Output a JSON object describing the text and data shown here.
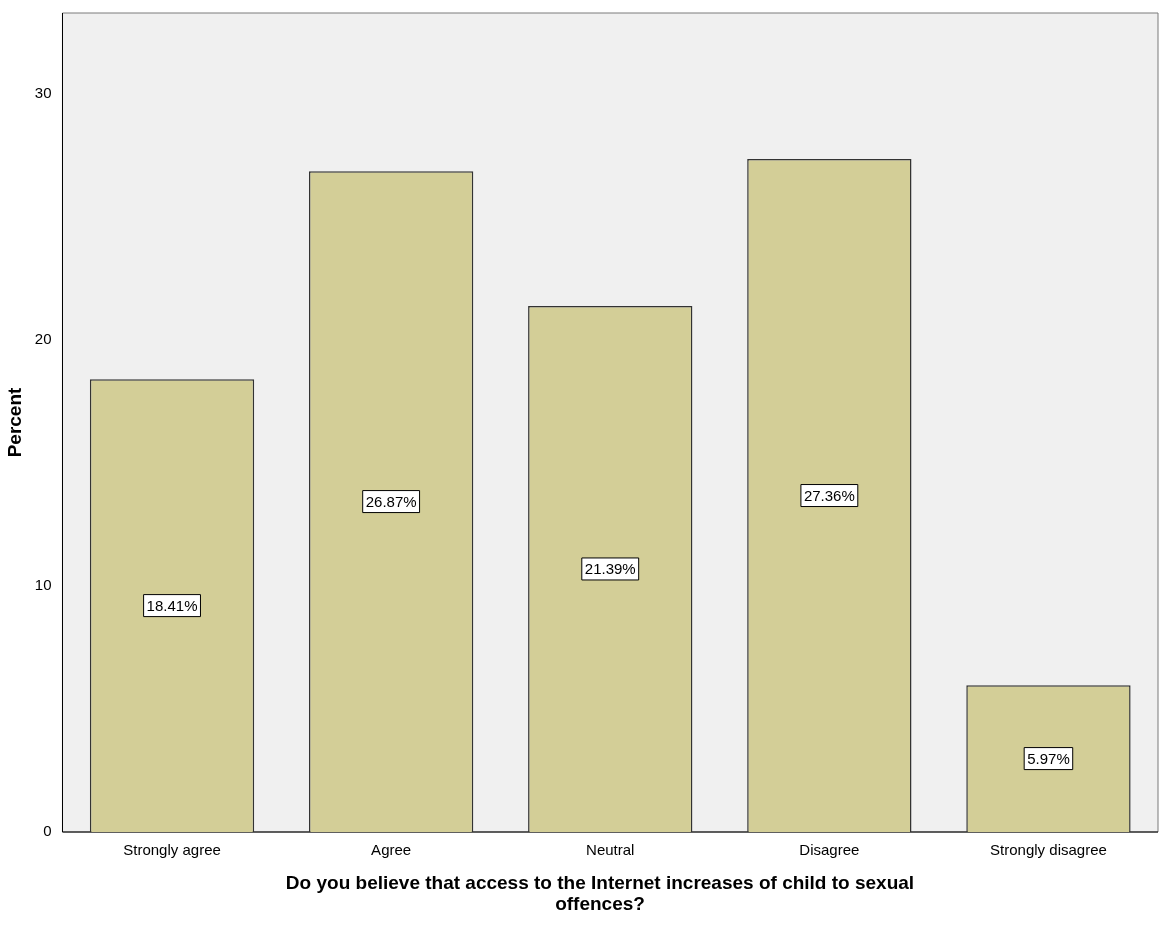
{
  "chart_data": {
    "type": "bar",
    "xlabel": "Do you believe that access to the Internet increases of child to sexual offences?",
    "ylabel": "Percent",
    "categories": [
      "Strongly agree",
      "Agree",
      "Neutral",
      "Disagree",
      "Strongly disagree"
    ],
    "values": [
      18.41,
      26.87,
      21.39,
      27.36,
      5.97
    ],
    "value_labels": [
      "18.41%",
      "26.87%",
      "21.39%",
      "27.36%",
      "5.97%"
    ],
    "color": "#d3ce97",
    "ylim": [
      0,
      33.3
    ],
    "yticks": [
      0,
      10,
      20,
      30
    ],
    "grid": false,
    "legend": false
  }
}
